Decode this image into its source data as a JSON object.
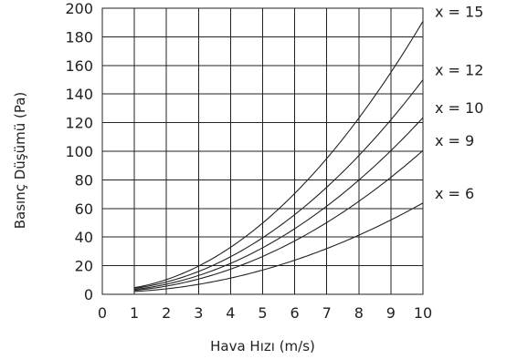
{
  "chart_data": {
    "type": "line",
    "xlabel": "Hava Hızı (m/s)",
    "ylabel": "Basınç Düşümü (Pa)",
    "xlim": [
      0,
      10
    ],
    "ylim": [
      0,
      200
    ],
    "x_ticks": [
      "0",
      "1",
      "2",
      "3",
      "4",
      "5",
      "6",
      "7",
      "8",
      "9",
      "10"
    ],
    "y_ticks": [
      "0",
      "20",
      "40",
      "60",
      "80",
      "100",
      "120",
      "140",
      "160",
      "180",
      "200"
    ],
    "grid": true,
    "legend": "labels at right end of each curve",
    "x": [
      1,
      2,
      3,
      4,
      5,
      6,
      7,
      8,
      9,
      10
    ],
    "series": [
      {
        "name": "x = 15",
        "values": [
          4,
          9,
          20,
          33,
          51,
          71,
          95,
          124,
          155,
          190
        ]
      },
      {
        "name": "x = 12",
        "values": [
          3,
          7,
          16,
          27,
          41,
          57,
          75,
          97,
          122,
          149
        ]
      },
      {
        "name": "x = 10",
        "values": [
          3,
          6,
          13,
          22,
          33,
          47,
          62,
          80,
          100,
          123
        ]
      },
      {
        "name": "x = 9",
        "values": [
          2,
          5,
          11,
          18,
          27,
          38,
          50,
          65,
          82,
          100
        ]
      },
      {
        "name": "x = 6",
        "values": [
          2,
          4,
          7,
          11,
          17,
          24,
          32,
          41,
          52,
          64
        ]
      }
    ]
  }
}
